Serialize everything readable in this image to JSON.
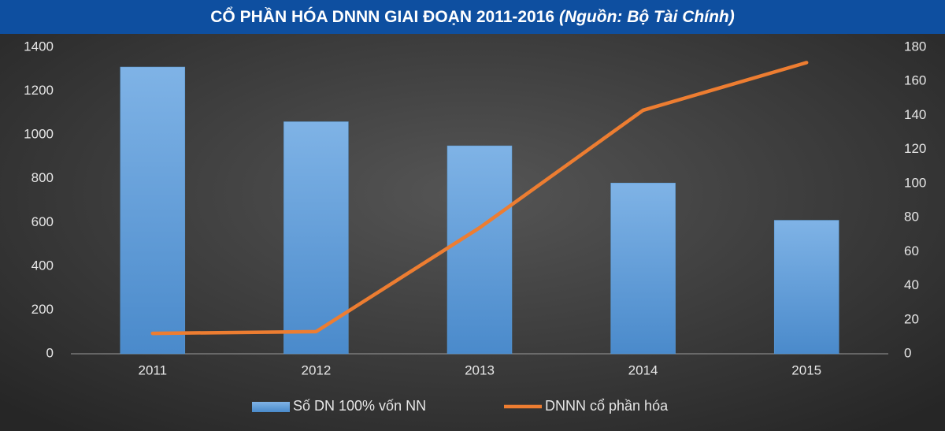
{
  "chart_data": {
    "type": "bar-line",
    "title": "CỔ PHẦN HÓA DNNN GIAI ĐOẠN 2011-2016",
    "subtitle": "(Nguồn: Bộ Tài Chính)",
    "categories": [
      "2011",
      "2012",
      "2013",
      "2014",
      "2015"
    ],
    "series": [
      {
        "name": "Số DN 100% vốn NN",
        "type": "bar",
        "color": "#5b9bd5",
        "values": [
          1310,
          1060,
          950,
          780,
          610
        ]
      },
      {
        "name": "DNNN cổ phần hóa",
        "type": "line",
        "color": "#ed7d31",
        "axis": "y2",
        "values": [
          12,
          13,
          74,
          143,
          171
        ]
      }
    ],
    "ylim": [
      0,
      1400
    ],
    "yticks": [
      0,
      200,
      400,
      600,
      800,
      1000,
      1200,
      1400
    ],
    "y2lim": [
      0,
      180
    ],
    "y2ticks": [
      0,
      20,
      40,
      60,
      80,
      100,
      120,
      140,
      160,
      180
    ],
    "grid": false,
    "legend": "bottom"
  }
}
